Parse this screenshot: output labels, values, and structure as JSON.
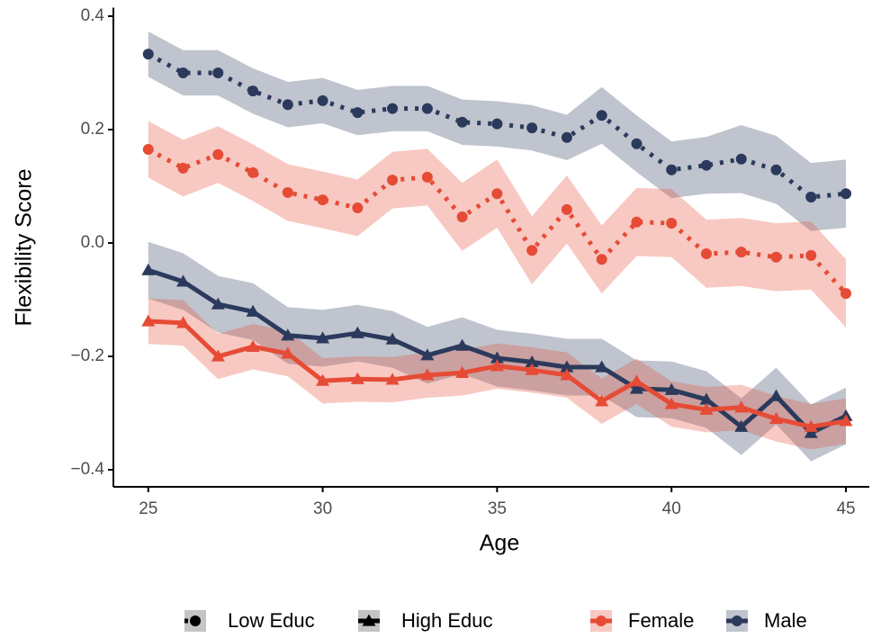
{
  "chart_data": {
    "type": "line",
    "x_label": "Age",
    "y_label": "Flexibility Score",
    "x": [
      25,
      26,
      27,
      28,
      29,
      30,
      31,
      32,
      33,
      34,
      35,
      36,
      37,
      38,
      39,
      40,
      41,
      42,
      43,
      44,
      45
    ],
    "xlim": [
      24,
      45.67
    ],
    "xticks": [
      25,
      30,
      35,
      40,
      45
    ],
    "ylim": [
      -0.43,
      0.415
    ],
    "yticks": [
      {
        "value": -0.4,
        "label": "−0.4"
      },
      {
        "value": -0.2,
        "label": "−0.2"
      },
      {
        "value": 0,
        "label": "0.0"
      },
      0.2,
      0.4
    ],
    "grid": false,
    "series": [
      {
        "color": "#2B3A5C",
        "marker": "circle",
        "linestyle": "dotted",
        "values": [
          0.333,
          0.3,
          0.3,
          0.268,
          0.244,
          0.251,
          0.23,
          0.237,
          0.237,
          0.213,
          0.21,
          0.203,
          0.186,
          0.225,
          0.175,
          0.129,
          0.137,
          0.148,
          0.129,
          0.081,
          0.087
        ],
        "lower": [
          0.293,
          0.26,
          0.26,
          0.228,
          0.204,
          0.211,
          0.19,
          0.197,
          0.197,
          0.173,
          0.17,
          0.163,
          0.146,
          0.175,
          0.125,
          0.079,
          0.087,
          0.088,
          0.069,
          0.021,
          0.027
        ],
        "upper": [
          0.373,
          0.34,
          0.34,
          0.308,
          0.284,
          0.291,
          0.27,
          0.277,
          0.277,
          0.253,
          0.25,
          0.243,
          0.226,
          0.275,
          0.225,
          0.179,
          0.187,
          0.208,
          0.189,
          0.141,
          0.147
        ]
      },
      {
        "color": "#E64B35",
        "marker": "circle",
        "linestyle": "dotted",
        "values": [
          0.165,
          0.132,
          0.156,
          0.124,
          0.089,
          0.076,
          0.062,
          0.111,
          0.116,
          0.046,
          0.087,
          -0.013,
          0.059,
          -0.029,
          0.037,
          0.035,
          -0.019,
          -0.016,
          -0.025,
          -0.022,
          -0.089
        ],
        "lower": [
          0.115,
          0.082,
          0.106,
          0.074,
          0.039,
          0.026,
          0.012,
          0.061,
          0.066,
          -0.014,
          0.027,
          -0.073,
          -0.001,
          -0.089,
          -0.023,
          -0.025,
          -0.079,
          -0.076,
          -0.085,
          -0.082,
          -0.149
        ],
        "upper": [
          0.215,
          0.182,
          0.206,
          0.174,
          0.139,
          0.126,
          0.112,
          0.161,
          0.166,
          0.106,
          0.147,
          0.047,
          0.119,
          0.031,
          0.097,
          0.095,
          0.041,
          0.044,
          0.035,
          0.038,
          -0.029
        ]
      },
      {
        "color": "#2B3A5C",
        "marker": "triangle",
        "linestyle": "solid",
        "values": [
          -0.048,
          -0.068,
          -0.108,
          -0.121,
          -0.163,
          -0.168,
          -0.159,
          -0.17,
          -0.198,
          -0.181,
          -0.203,
          -0.21,
          -0.219,
          -0.219,
          -0.257,
          -0.259,
          -0.276,
          -0.324,
          -0.27,
          -0.335,
          -0.305
        ],
        "lower": [
          -0.098,
          -0.118,
          -0.158,
          -0.171,
          -0.213,
          -0.218,
          -0.209,
          -0.22,
          -0.248,
          -0.231,
          -0.253,
          -0.26,
          -0.269,
          -0.269,
          -0.307,
          -0.309,
          -0.326,
          -0.374,
          -0.32,
          -0.385,
          -0.355
        ],
        "upper": [
          0.002,
          -0.018,
          -0.058,
          -0.071,
          -0.113,
          -0.118,
          -0.109,
          -0.12,
          -0.148,
          -0.131,
          -0.153,
          -0.16,
          -0.169,
          -0.169,
          -0.207,
          -0.209,
          -0.226,
          -0.274,
          -0.22,
          -0.285,
          -0.255
        ]
      },
      {
        "color": "#E64B35",
        "marker": "triangle",
        "linestyle": "solid",
        "values": [
          -0.138,
          -0.141,
          -0.2,
          -0.183,
          -0.195,
          -0.243,
          -0.24,
          -0.241,
          -0.233,
          -0.229,
          -0.217,
          -0.224,
          -0.233,
          -0.279,
          -0.244,
          -0.284,
          -0.294,
          -0.29,
          -0.31,
          -0.324,
          -0.314
        ],
        "lower": [
          -0.178,
          -0.181,
          -0.24,
          -0.223,
          -0.235,
          -0.283,
          -0.28,
          -0.281,
          -0.273,
          -0.269,
          -0.257,
          -0.264,
          -0.273,
          -0.319,
          -0.284,
          -0.324,
          -0.334,
          -0.33,
          -0.35,
          -0.364,
          -0.354
        ],
        "upper": [
          -0.098,
          -0.101,
          -0.16,
          -0.143,
          -0.155,
          -0.203,
          -0.2,
          -0.201,
          -0.193,
          -0.189,
          -0.177,
          -0.184,
          -0.193,
          -0.239,
          -0.204,
          -0.244,
          -0.254,
          -0.25,
          -0.27,
          -0.284,
          -0.274
        ]
      }
    ],
    "legend": {
      "shape": [
        {
          "label": "Low Educ",
          "marker": "circle",
          "linestyle": "dotted"
        },
        {
          "label": "High Educ",
          "marker": "triangle",
          "linestyle": "solid"
        }
      ],
      "color": [
        {
          "label": "Female",
          "color": "#E64B35"
        },
        {
          "label": "Male",
          "color": "#2B3A5C"
        }
      ]
    }
  }
}
